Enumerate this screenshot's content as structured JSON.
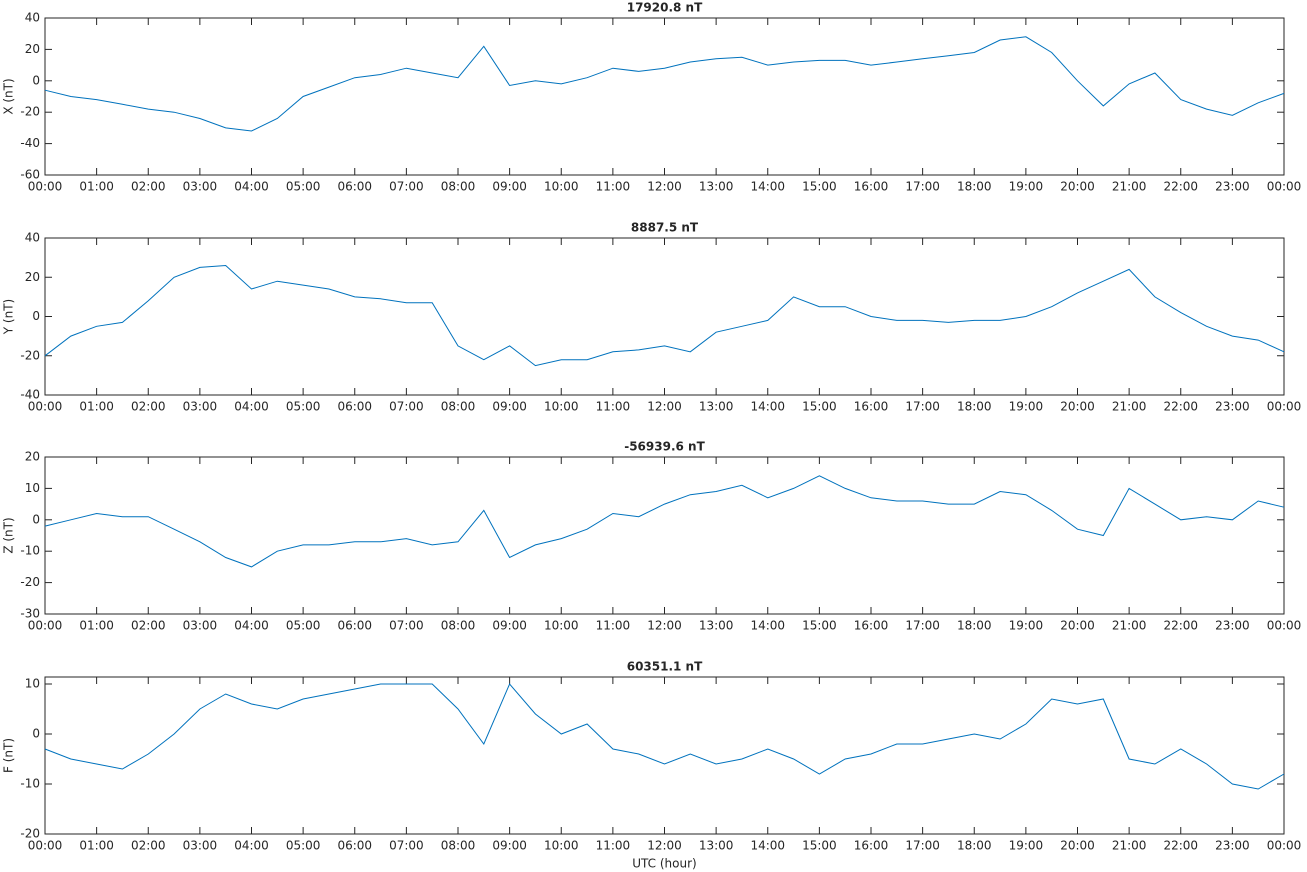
{
  "chart_data": [
    {
      "type": "line",
      "title": "17920.8 nT",
      "ylabel": "X (nT)",
      "x": [
        0,
        0.5,
        1,
        1.5,
        2,
        2.5,
        3,
        3.5,
        4,
        4.5,
        5,
        5.5,
        6,
        6.5,
        7,
        7.5,
        8,
        8.5,
        9,
        9.5,
        10,
        10.5,
        11,
        11.5,
        12,
        12.5,
        13,
        13.5,
        14,
        14.5,
        15,
        15.5,
        16,
        16.5,
        17,
        17.5,
        18,
        18.5,
        19,
        19.5,
        20,
        20.5,
        21,
        21.5,
        22,
        22.5,
        23,
        23.5,
        24
      ],
      "series": [
        {
          "color": "#0072bd",
          "values": [
            -6,
            -10,
            -12,
            -15,
            -18,
            -20,
            -24,
            -30,
            -32,
            -24,
            -10,
            -4,
            2,
            4,
            8,
            5,
            2,
            22,
            -3,
            0,
            -2,
            2,
            8,
            6,
            8,
            12,
            14,
            15,
            10,
            12,
            13,
            13,
            10,
            12,
            14,
            16,
            18,
            26,
            28,
            18,
            0,
            -16,
            -2,
            5,
            -12,
            -18,
            -22,
            -14,
            -8
          ]
        }
      ],
      "xlim": [
        0,
        24
      ],
      "ylim": [
        -60,
        40
      ],
      "yticks": [
        -60,
        -40,
        -20,
        0,
        20,
        40
      ],
      "xticks": [
        {
          "value": 0,
          "label": "00:00"
        },
        {
          "value": 1,
          "label": "01:00"
        },
        {
          "value": 2,
          "label": "02:00"
        },
        {
          "value": 3,
          "label": "03:00"
        },
        {
          "value": 4,
          "label": "04:00"
        },
        {
          "value": 5,
          "label": "05:00"
        },
        {
          "value": 6,
          "label": "06:00"
        },
        {
          "value": 7,
          "label": "07:00"
        },
        {
          "value": 8,
          "label": "08:00"
        },
        {
          "value": 9,
          "label": "09:00"
        },
        {
          "value": 10,
          "label": "10:00"
        },
        {
          "value": 11,
          "label": "11:00"
        },
        {
          "value": 12,
          "label": "12:00"
        },
        {
          "value": 13,
          "label": "13:00"
        },
        {
          "value": 14,
          "label": "14:00"
        },
        {
          "value": 15,
          "label": "15:00"
        },
        {
          "value": 16,
          "label": "16:00"
        },
        {
          "value": 17,
          "label": "17:00"
        },
        {
          "value": 18,
          "label": "18:00"
        },
        {
          "value": 19,
          "label": "19:00"
        },
        {
          "value": 20,
          "label": "20:00"
        },
        {
          "value": 21,
          "label": "21:00"
        },
        {
          "value": 22,
          "label": "22:00"
        },
        {
          "value": 23,
          "label": "23:00"
        },
        {
          "value": 24,
          "label": "00:00"
        }
      ]
    },
    {
      "type": "line",
      "title": "8887.5 nT",
      "ylabel": "Y (nT)",
      "x": [
        0,
        0.5,
        1,
        1.5,
        2,
        2.5,
        3,
        3.5,
        4,
        4.5,
        5,
        5.5,
        6,
        6.5,
        7,
        7.5,
        8,
        8.5,
        9,
        9.5,
        10,
        10.5,
        11,
        11.5,
        12,
        12.5,
        13,
        13.5,
        14,
        14.5,
        15,
        15.5,
        16,
        16.5,
        17,
        17.5,
        18,
        18.5,
        19,
        19.5,
        20,
        20.5,
        21,
        21.5,
        22,
        22.5,
        23,
        23.5,
        24
      ],
      "series": [
        {
          "color": "#0072bd",
          "values": [
            -20,
            -10,
            -5,
            -3,
            8,
            20,
            25,
            26,
            14,
            18,
            16,
            14,
            10,
            9,
            7,
            7,
            -15,
            -22,
            -15,
            -25,
            -22,
            -22,
            -18,
            -17,
            -15,
            -18,
            -8,
            -5,
            -2,
            10,
            5,
            5,
            0,
            -2,
            -2,
            -3,
            -2,
            -2,
            0,
            5,
            12,
            18,
            24,
            10,
            2,
            -5,
            -10,
            -12,
            -18
          ]
        }
      ],
      "xlim": [
        0,
        24
      ],
      "ylim": [
        -40,
        40
      ],
      "yticks": [
        -40,
        -20,
        0,
        20,
        40
      ],
      "xticks": [
        {
          "value": 0,
          "label": "00:00"
        },
        {
          "value": 1,
          "label": "01:00"
        },
        {
          "value": 2,
          "label": "02:00"
        },
        {
          "value": 3,
          "label": "03:00"
        },
        {
          "value": 4,
          "label": "04:00"
        },
        {
          "value": 5,
          "label": "05:00"
        },
        {
          "value": 6,
          "label": "06:00"
        },
        {
          "value": 7,
          "label": "07:00"
        },
        {
          "value": 8,
          "label": "08:00"
        },
        {
          "value": 9,
          "label": "09:00"
        },
        {
          "value": 10,
          "label": "10:00"
        },
        {
          "value": 11,
          "label": "11:00"
        },
        {
          "value": 12,
          "label": "12:00"
        },
        {
          "value": 13,
          "label": "13:00"
        },
        {
          "value": 14,
          "label": "14:00"
        },
        {
          "value": 15,
          "label": "15:00"
        },
        {
          "value": 16,
          "label": "16:00"
        },
        {
          "value": 17,
          "label": "17:00"
        },
        {
          "value": 18,
          "label": "18:00"
        },
        {
          "value": 19,
          "label": "19:00"
        },
        {
          "value": 20,
          "label": "20:00"
        },
        {
          "value": 21,
          "label": "21:00"
        },
        {
          "value": 22,
          "label": "22:00"
        },
        {
          "value": 23,
          "label": "23:00"
        },
        {
          "value": 24,
          "label": "00:00"
        }
      ]
    },
    {
      "type": "line",
      "title": "-56939.6 nT",
      "ylabel": "Z (nT)",
      "x": [
        0,
        0.5,
        1,
        1.5,
        2,
        2.5,
        3,
        3.5,
        4,
        4.5,
        5,
        5.5,
        6,
        6.5,
        7,
        7.5,
        8,
        8.5,
        9,
        9.5,
        10,
        10.5,
        11,
        11.5,
        12,
        12.5,
        13,
        13.5,
        14,
        14.5,
        15,
        15.5,
        16,
        16.5,
        17,
        17.5,
        18,
        18.5,
        19,
        19.5,
        20,
        20.5,
        21,
        21.5,
        22,
        22.5,
        23,
        23.5,
        24
      ],
      "series": [
        {
          "color": "#0072bd",
          "values": [
            -2,
            0,
            2,
            1,
            1,
            -3,
            -7,
            -12,
            -15,
            -10,
            -8,
            -8,
            -7,
            -7,
            -6,
            -8,
            -7,
            3,
            -12,
            -8,
            -6,
            -3,
            2,
            1,
            5,
            8,
            9,
            11,
            7,
            10,
            14,
            10,
            7,
            6,
            6,
            5,
            5,
            9,
            8,
            3,
            -3,
            -5,
            10,
            5,
            0,
            1,
            0,
            6,
            4
          ]
        }
      ],
      "xlim": [
        0,
        24
      ],
      "ylim": [
        -30,
        20
      ],
      "yticks": [
        -30,
        -20,
        -10,
        0,
        10,
        20
      ],
      "xticks": [
        {
          "value": 0,
          "label": "00:00"
        },
        {
          "value": 1,
          "label": "01:00"
        },
        {
          "value": 2,
          "label": "02:00"
        },
        {
          "value": 3,
          "label": "03:00"
        },
        {
          "value": 4,
          "label": "04:00"
        },
        {
          "value": 5,
          "label": "05:00"
        },
        {
          "value": 6,
          "label": "06:00"
        },
        {
          "value": 7,
          "label": "07:00"
        },
        {
          "value": 8,
          "label": "08:00"
        },
        {
          "value": 9,
          "label": "09:00"
        },
        {
          "value": 10,
          "label": "10:00"
        },
        {
          "value": 11,
          "label": "11:00"
        },
        {
          "value": 12,
          "label": "12:00"
        },
        {
          "value": 13,
          "label": "13:00"
        },
        {
          "value": 14,
          "label": "14:00"
        },
        {
          "value": 15,
          "label": "15:00"
        },
        {
          "value": 16,
          "label": "16:00"
        },
        {
          "value": 17,
          "label": "17:00"
        },
        {
          "value": 18,
          "label": "18:00"
        },
        {
          "value": 19,
          "label": "19:00"
        },
        {
          "value": 20,
          "label": "20:00"
        },
        {
          "value": 21,
          "label": "21:00"
        },
        {
          "value": 22,
          "label": "22:00"
        },
        {
          "value": 23,
          "label": "23:00"
        },
        {
          "value": 24,
          "label": "00:00"
        }
      ]
    },
    {
      "type": "line",
      "title": "60351.1 nT",
      "ylabel": "F (nT)",
      "xlabel": "UTC (hour)",
      "x": [
        0,
        0.5,
        1,
        1.5,
        2,
        2.5,
        3,
        3.5,
        4,
        4.5,
        5,
        5.5,
        6,
        6.5,
        7,
        7.5,
        8,
        8.5,
        9,
        9.5,
        10,
        10.5,
        11,
        11.5,
        12,
        12.5,
        13,
        13.5,
        14,
        14.5,
        15,
        15.5,
        16,
        16.5,
        17,
        17.5,
        18,
        18.5,
        19,
        19.5,
        20,
        20.5,
        21,
        21.5,
        22,
        22.5,
        23,
        23.5,
        24
      ],
      "series": [
        {
          "color": "#0072bd",
          "values": [
            -3,
            -5,
            -6,
            -7,
            -4,
            0,
            5,
            8,
            6,
            5,
            7,
            8,
            9,
            10,
            10,
            10,
            5,
            -2,
            10,
            4,
            0,
            2,
            -3,
            -4,
            -6,
            -4,
            -6,
            -5,
            -3,
            -5,
            -8,
            -5,
            -4,
            -2,
            -2,
            -1,
            0,
            -1,
            2,
            7,
            6,
            7,
            -5,
            -6,
            -3,
            -6,
            -10,
            -11,
            -8
          ]
        }
      ],
      "xlim": [
        0,
        24
      ],
      "ylim": [
        -20,
        11.4
      ],
      "yticks": [
        -20,
        -10,
        0,
        10
      ],
      "xticks": [
        {
          "value": 0,
          "label": "00:00"
        },
        {
          "value": 1,
          "label": "01:00"
        },
        {
          "value": 2,
          "label": "02:00"
        },
        {
          "value": 3,
          "label": "03:00"
        },
        {
          "value": 4,
          "label": "04:00"
        },
        {
          "value": 5,
          "label": "05:00"
        },
        {
          "value": 6,
          "label": "06:00"
        },
        {
          "value": 7,
          "label": "07:00"
        },
        {
          "value": 8,
          "label": "08:00"
        },
        {
          "value": 9,
          "label": "09:00"
        },
        {
          "value": 10,
          "label": "10:00"
        },
        {
          "value": 11,
          "label": "11:00"
        },
        {
          "value": 12,
          "label": "12:00"
        },
        {
          "value": 13,
          "label": "13:00"
        },
        {
          "value": 14,
          "label": "14:00"
        },
        {
          "value": 15,
          "label": "15:00"
        },
        {
          "value": 16,
          "label": "16:00"
        },
        {
          "value": 17,
          "label": "17:00"
        },
        {
          "value": 18,
          "label": "18:00"
        },
        {
          "value": 19,
          "label": "19:00"
        },
        {
          "value": 20,
          "label": "20:00"
        },
        {
          "value": 21,
          "label": "21:00"
        },
        {
          "value": 22,
          "label": "22:00"
        },
        {
          "value": 23,
          "label": "23:00"
        },
        {
          "value": 24,
          "label": "00:00"
        }
      ]
    }
  ]
}
